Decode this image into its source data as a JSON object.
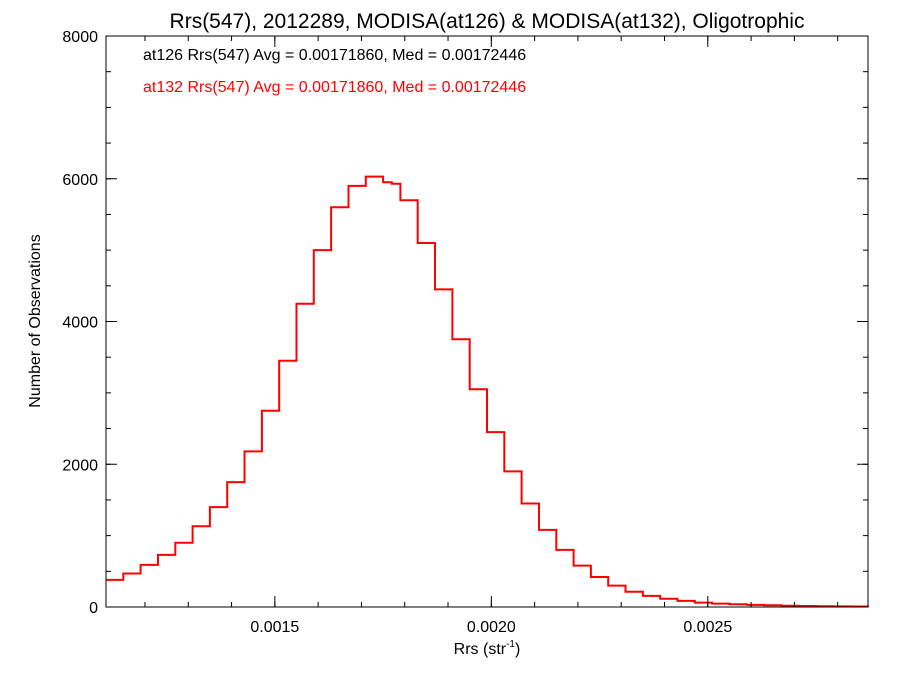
{
  "chart_data": {
    "type": "line",
    "step": true,
    "title": "Rrs(547), 2012289, MODISA(at126) & MODISA(at132), Oligotrophic",
    "xlabel": "Rrs (str",
    "xlabel_sup": "-1",
    "xlabel_end": ")",
    "ylabel": "Number of Observations",
    "xlim": [
      0.00111,
      0.00287
    ],
    "ylim": [
      0,
      8000
    ],
    "x_ticks": [
      0.0015,
      0.002,
      0.0025
    ],
    "x_tick_labels": [
      "0.0015",
      "0.0020",
      "0.0025"
    ],
    "x_minor_step": 0.0001,
    "y_ticks": [
      0,
      2000,
      4000,
      6000,
      8000
    ],
    "y_tick_labels": [
      "0",
      "2000",
      "4000",
      "6000",
      "8000"
    ],
    "y_minor_step": 500,
    "grid": false,
    "annotations": [
      {
        "text": "at126 Rrs(547) Avg = 0.00171860, Med = 0.00172446",
        "color": "#000000"
      },
      {
        "text": "at132 Rrs(547) Avg = 0.00171860, Med = 0.00172446",
        "color": "#ff0000"
      }
    ],
    "series": [
      {
        "color": "#ff0000",
        "x": [
          0.00111,
          0.00115,
          0.00119,
          0.00123,
          0.00127,
          0.00131,
          0.00135,
          0.00139,
          0.00143,
          0.00147,
          0.00151,
          0.00155,
          0.00159,
          0.00163,
          0.00167,
          0.00171,
          0.00175,
          0.00177,
          0.00179,
          0.00183,
          0.00187,
          0.00191,
          0.00195,
          0.00199,
          0.00203,
          0.00207,
          0.00211,
          0.00215,
          0.00219,
          0.00223,
          0.00227,
          0.00231,
          0.00235,
          0.00239,
          0.00243,
          0.00247,
          0.00251,
          0.00255,
          0.00259,
          0.00263,
          0.00267,
          0.00271,
          0.00275,
          0.00279,
          0.00283,
          0.00287
        ],
        "y": [
          380,
          470,
          590,
          730,
          900,
          1130,
          1400,
          1750,
          2180,
          2750,
          3450,
          4250,
          5000,
          5600,
          5900,
          6030,
          5950,
          5930,
          5700,
          5100,
          4450,
          3750,
          3050,
          2450,
          1900,
          1450,
          1080,
          800,
          580,
          420,
          300,
          215,
          155,
          115,
          85,
          62,
          48,
          38,
          30,
          24,
          18,
          14,
          11,
          9,
          7,
          6
        ]
      }
    ]
  }
}
